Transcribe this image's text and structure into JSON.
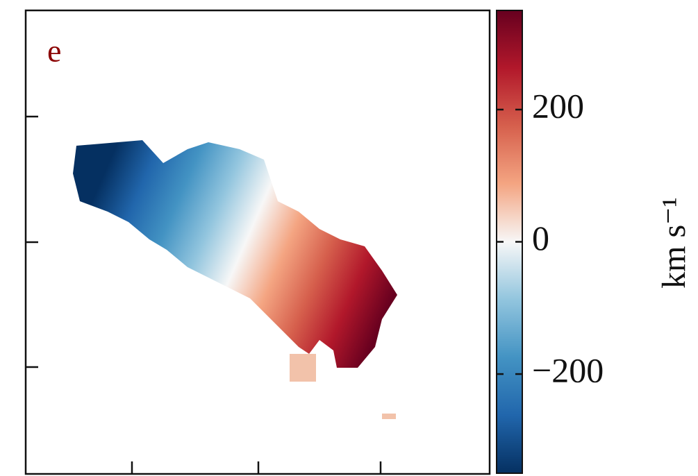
{
  "chart_data": {
    "type": "velocity-map",
    "panel_label": "e",
    "colorbar": {
      "label": "km s⁻¹",
      "lim": [
        -350,
        350
      ],
      "ticks": [
        {
          "value": -200,
          "label": "−200"
        },
        0,
        200
      ],
      "colors": [
        "#053061",
        "#2166ac",
        "#4393c3",
        "#92c5de",
        "#f7f7f7",
        "#f4a582",
        "#d6604d",
        "#b2182b",
        "#67001f"
      ]
    }
  }
}
